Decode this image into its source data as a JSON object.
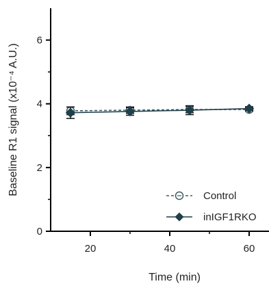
{
  "chart_data": {
    "type": "line",
    "xlabel": "Time (min)",
    "ylabel": "Baseline R1 signal (x10⁻⁴ A.U.)",
    "xlim": [
      10,
      65
    ],
    "ylim": [
      0,
      7
    ],
    "x_ticks": [
      "20",
      "40",
      "60"
    ],
    "y_ticks": [
      "0",
      "2",
      "4",
      "6"
    ],
    "legend_position": "bottom-right",
    "series": [
      {
        "name": "Control",
        "marker": "open-circle",
        "line_style": "dashed",
        "color": "#3f5960",
        "x": [
          15,
          30,
          45,
          60
        ],
        "y": [
          3.78,
          3.8,
          3.82,
          3.82
        ],
        "err": [
          0.12,
          0.1,
          0.1,
          0.06
        ]
      },
      {
        "name": "inIGF1RKO",
        "marker": "filled-diamond",
        "line_style": "solid",
        "color": "#1f3f4a",
        "x": [
          15,
          30,
          45,
          60
        ],
        "y": [
          3.72,
          3.76,
          3.8,
          3.85
        ],
        "err": [
          0.18,
          0.12,
          0.14,
          0.06
        ]
      }
    ]
  }
}
